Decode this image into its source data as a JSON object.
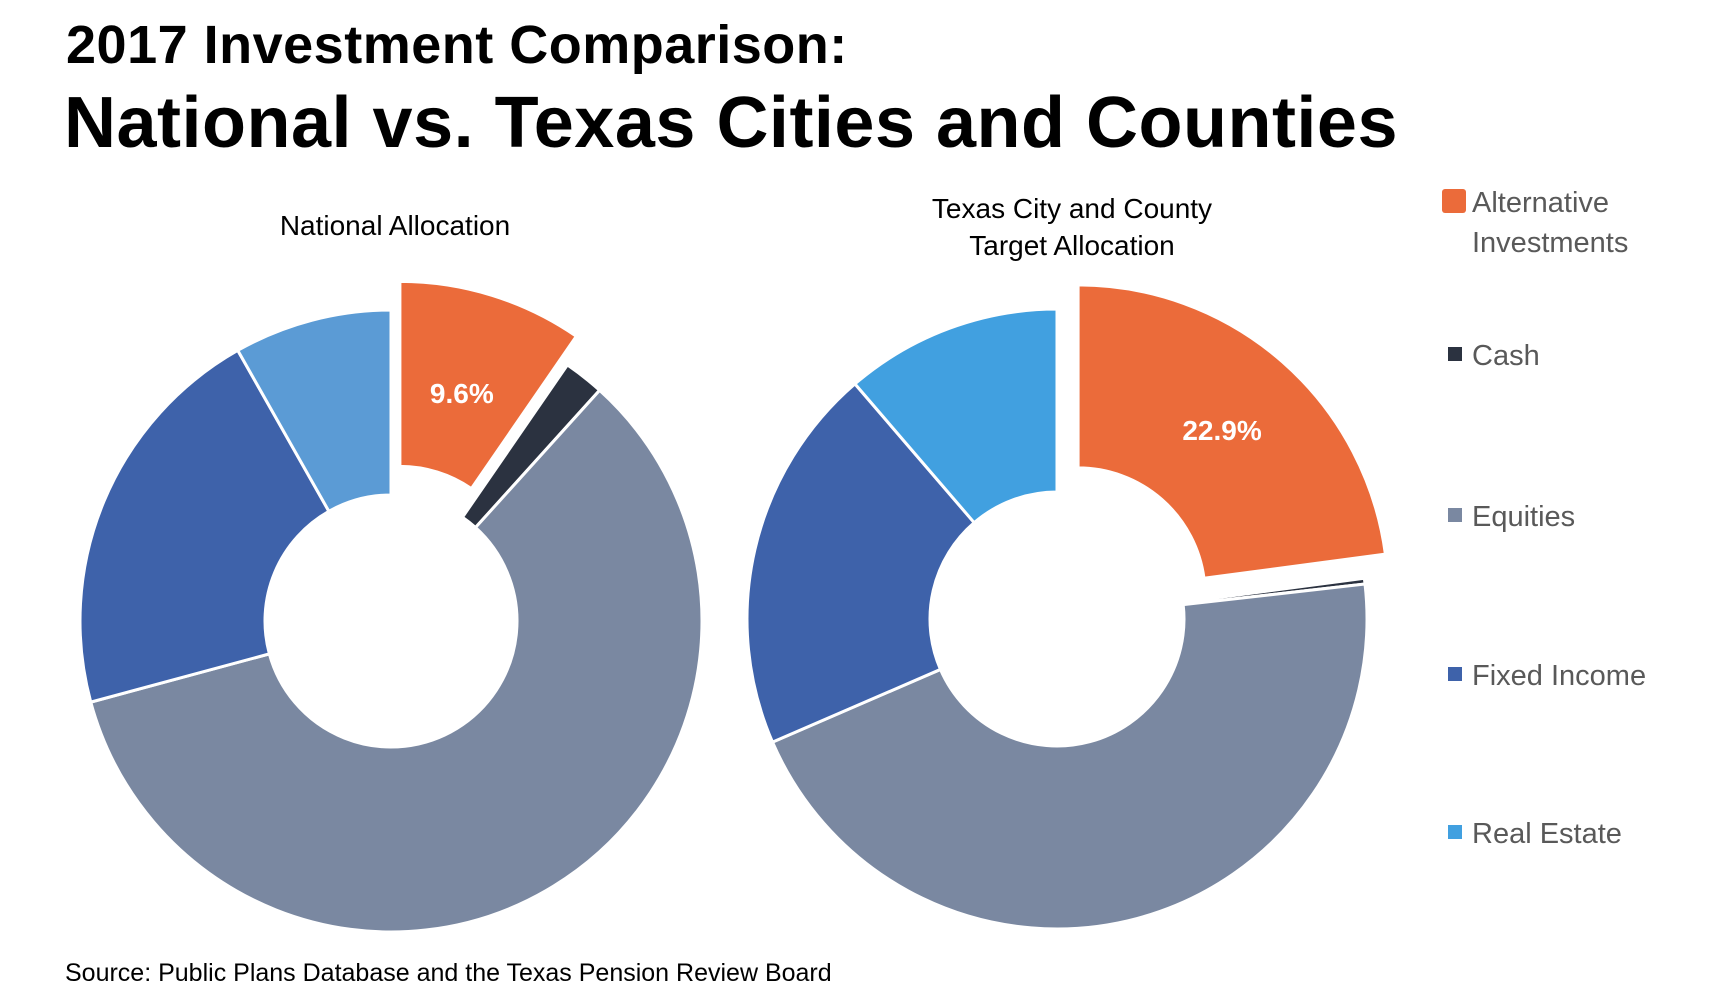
{
  "header": {
    "title_line1": "2017 Investment Comparison:",
    "title_line2": "National vs. Texas Cities and Counties"
  },
  "chart_data": [
    {
      "type": "pie",
      "variant": "donut",
      "title": "National Allocation",
      "unit": "%",
      "categories": [
        "Alternative Investments",
        "Cash",
        "Equities",
        "Fixed Income",
        "Real Estate"
      ],
      "values": [
        9.6,
        2.1,
        59.1,
        21.0,
        8.2
      ],
      "colors": [
        "#EB6B3A",
        "#2B3240",
        "#7A88A1",
        "#3E62AA",
        "#5B9BD5"
      ],
      "exploded": [
        "Alternative Investments"
      ],
      "data_labels": [
        {
          "category": "Alternative Investments",
          "text": "9.6%"
        }
      ]
    },
    {
      "type": "pie",
      "variant": "donut",
      "title": "Texas City and County Target Allocation",
      "title_lines": [
        "Texas City and County",
        "Target Allocation"
      ],
      "unit": "%",
      "categories": [
        "Alternative Investments",
        "Cash",
        "Equities",
        "Fixed Income",
        "Real Estate"
      ],
      "values": [
        22.9,
        0.3,
        45.3,
        20.2,
        11.3
      ],
      "colors": [
        "#EB6B3A",
        "#2B3240",
        "#7A88A1",
        "#3E62AA",
        "#41A0E0"
      ],
      "exploded": [
        "Alternative Investments"
      ],
      "data_labels": [
        {
          "category": "Alternative Investments",
          "text": "22.9%"
        }
      ]
    }
  ],
  "legend": {
    "placement": "right",
    "items": [
      {
        "label": "Alternative Investments",
        "color": "#EB6B3A"
      },
      {
        "label": "Cash",
        "color": "#2B3240"
      },
      {
        "label": "Equities",
        "color": "#7A88A1"
      },
      {
        "label": "Fixed Income",
        "color": "#3E62AA"
      },
      {
        "label": "Real Estate",
        "color": "#41A0E0"
      }
    ]
  },
  "footer": {
    "source": "Source: Public Plans Database and the Texas Pension Review Board"
  }
}
